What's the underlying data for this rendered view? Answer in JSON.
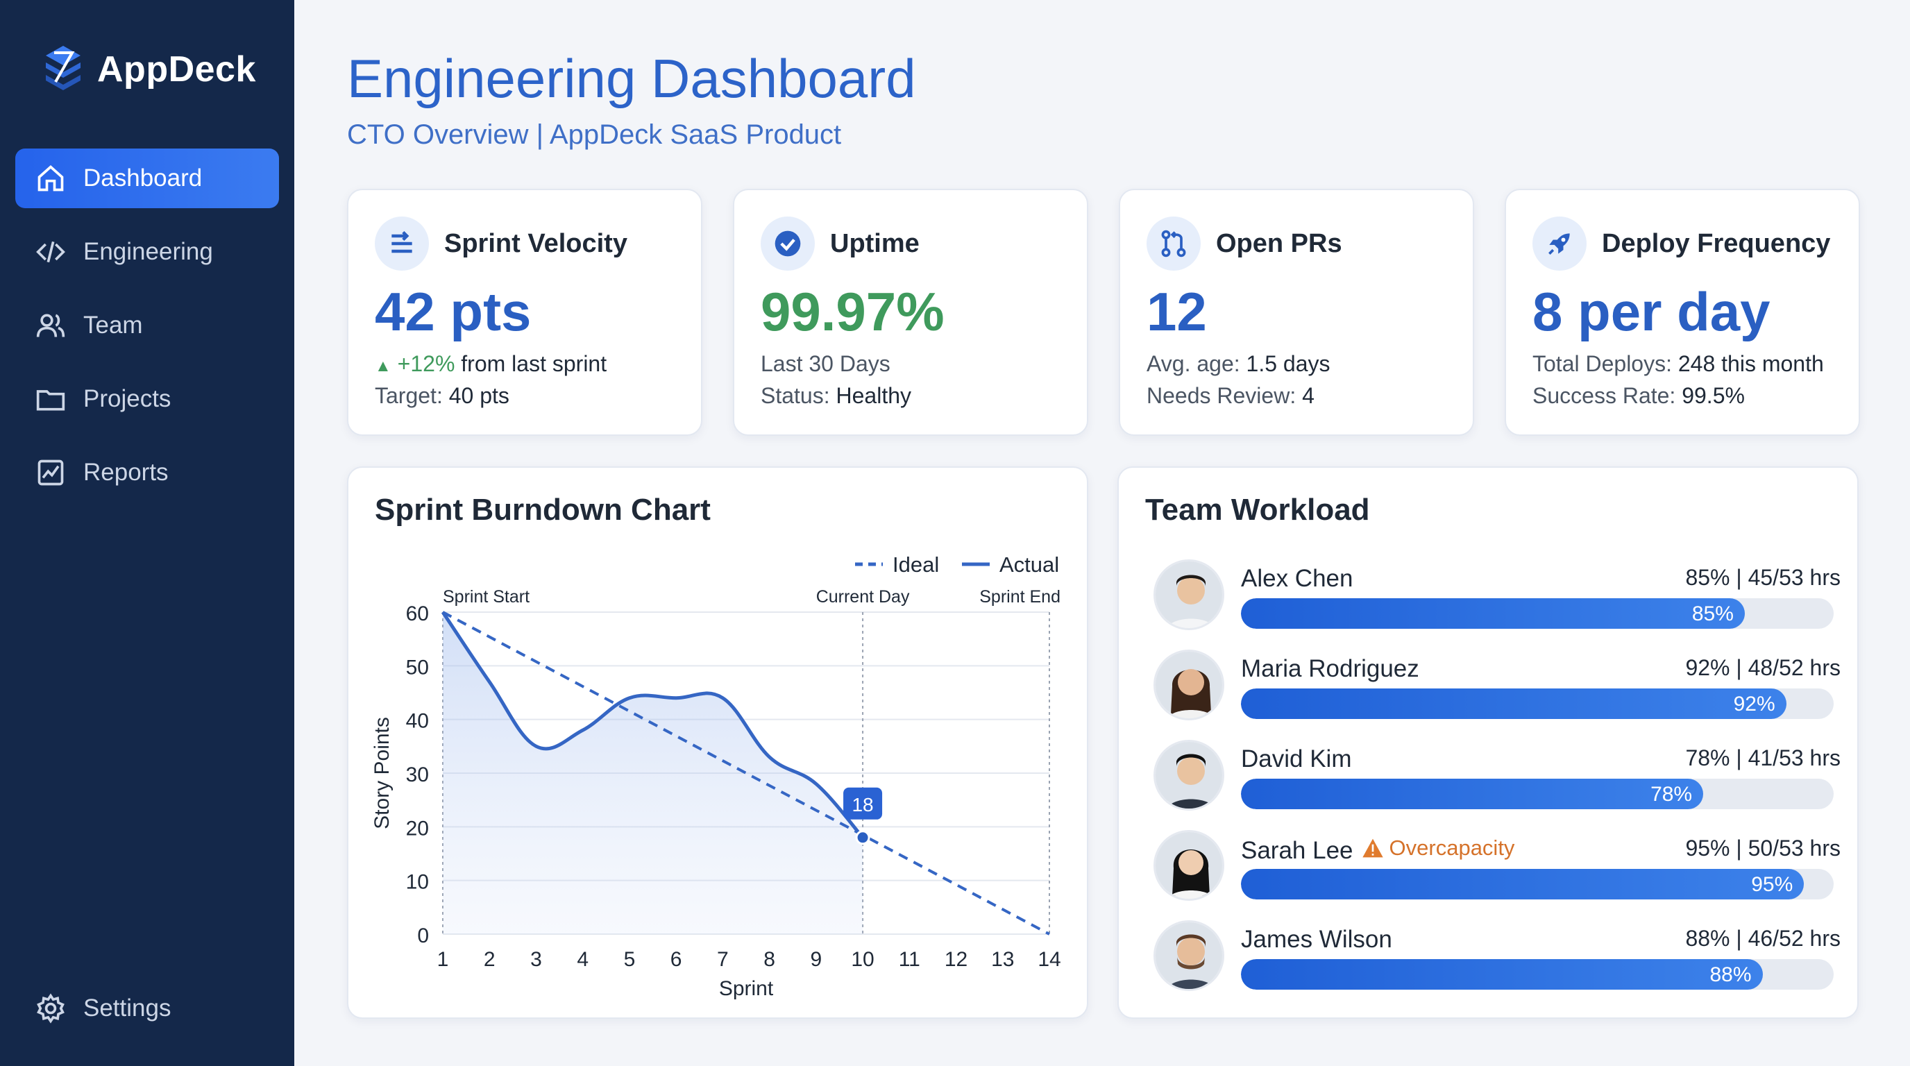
{
  "app": {
    "name": "AppDeck"
  },
  "sidebar": {
    "items": [
      {
        "label": "Dashboard",
        "icon": "home-icon",
        "active": true
      },
      {
        "label": "Engineering",
        "icon": "code-icon",
        "active": false
      },
      {
        "label": "Team",
        "icon": "users-icon",
        "active": false
      },
      {
        "label": "Projects",
        "icon": "folder-icon",
        "active": false
      },
      {
        "label": "Reports",
        "icon": "chart-icon",
        "active": false
      }
    ],
    "settings_label": "Settings"
  },
  "header": {
    "title": "Engineering Dashboard",
    "subtitle": "CTO Overview | AppDeck SaaS Product"
  },
  "kpis": [
    {
      "label": "Sprint Velocity",
      "icon": "list-arrow-icon",
      "value": "42 pts",
      "line1_trend": "+12%",
      "line1_rest": " from last sprint",
      "line2_key": "Target:",
      "line2_val": " 40 pts"
    },
    {
      "label": "Uptime",
      "icon": "check-circle-icon",
      "value": "99.97%",
      "line1_key": "Last 30 Days",
      "line2_key": "Status:",
      "line2_val": " Healthy"
    },
    {
      "label": "Open PRs",
      "icon": "pull-request-icon",
      "value": "12",
      "line1_key": "Avg. age:",
      "line1_val": " 1.5 days",
      "line2_key": "Needs Review:",
      "line2_val": " 4"
    },
    {
      "label": "Deploy Frequency",
      "icon": "rocket-icon",
      "value": "8 per day",
      "line1_key": "Total Deploys:",
      "line1_val": " 248 this month",
      "line2_key": "Success Rate:",
      "line2_val": " 99.5%"
    }
  ],
  "chart_section": {
    "title": "Sprint Burndown Chart"
  },
  "chart_data": {
    "type": "line",
    "title": "Sprint Burndown Chart",
    "xlabel": "Sprint",
    "ylabel": "Story Points",
    "xlim": [
      1,
      14
    ],
    "ylim": [
      0,
      60
    ],
    "x_ticks": [
      1,
      2,
      3,
      4,
      5,
      6,
      7,
      8,
      9,
      10,
      11,
      12,
      13,
      14
    ],
    "y_ticks": [
      0,
      10,
      20,
      30,
      40,
      50,
      60
    ],
    "grid": true,
    "legend": "top-right",
    "series": [
      {
        "name": "Ideal",
        "style": "dashed",
        "color": "#3566c4",
        "x": [
          1,
          14
        ],
        "y": [
          60,
          0
        ]
      },
      {
        "name": "Actual",
        "style": "solid",
        "color": "#3566c4",
        "x": [
          1,
          2,
          3,
          4,
          5,
          6,
          7,
          8,
          9,
          10
        ],
        "y": [
          60,
          47,
          35,
          38,
          44,
          44,
          44,
          33,
          28,
          18
        ]
      }
    ],
    "markers": [
      {
        "label": "Sprint Start",
        "x": 1
      },
      {
        "label": "Current Day",
        "x": 10
      },
      {
        "label": "Sprint End",
        "x": 14
      }
    ],
    "callout": {
      "x": 10,
      "y": 18,
      "label": "18"
    }
  },
  "team": {
    "title": "Team Workload",
    "members": [
      {
        "name": "Alex Chen",
        "stats": "85% | 45/53 hrs",
        "percent": 85,
        "bar_label": "85%",
        "warning": ""
      },
      {
        "name": "Maria Rodriguez",
        "stats": "92% | 48/52 hrs",
        "percent": 92,
        "bar_label": "92%",
        "warning": ""
      },
      {
        "name": "David Kim",
        "stats": "78% | 41/53 hrs",
        "percent": 78,
        "bar_label": "78%",
        "warning": ""
      },
      {
        "name": "Sarah Lee",
        "stats": "95% | 50/53 hrs",
        "percent": 95,
        "bar_label": "95%",
        "warning": "Overcapacity"
      },
      {
        "name": "James Wilson",
        "stats": "88% | 46/52 hrs",
        "percent": 88,
        "bar_label": "88%",
        "warning": ""
      }
    ]
  },
  "colors": {
    "accent": "#2563eb",
    "sidebar": "#14284a",
    "success": "#3f9a5c",
    "warning": "#d5722a"
  }
}
